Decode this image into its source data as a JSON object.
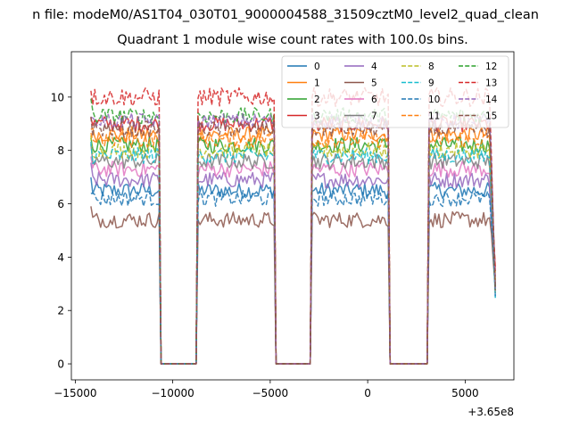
{
  "chart_data": {
    "type": "line",
    "suptitle": "n file: modeM0/AS1T04_030T01_9000004588_31509cztM0_level2_quad_clean",
    "title": "Quadrant 1 module wise count rates with 100.0s bins.",
    "xlabel": "",
    "ylabel": "",
    "x_offset_label": "+3.65e8",
    "xlim": [
      -15200,
      7500
    ],
    "ylim": [
      -0.6,
      11.7
    ],
    "xticks": [
      -15000,
      -10000,
      -5000,
      0,
      5000
    ],
    "xtick_labels": [
      "−15000",
      "−10000",
      "−5000",
      "0",
      "5000"
    ],
    "yticks": [
      0,
      2,
      4,
      6,
      8,
      10
    ],
    "ytick_labels": [
      "0",
      "2",
      "4",
      "6",
      "8",
      "10"
    ],
    "grid": false,
    "legend_position": "top-right",
    "legend_ncol": 4,
    "segments_x": [
      [
        -14200,
        -10700
      ],
      [
        -8700,
        -4800
      ],
      [
        -2850,
        1050
      ],
      [
        3150,
        6550
      ]
    ],
    "gap_x": [
      [
        -10600,
        -8800
      ],
      [
        -4700,
        -2950
      ],
      [
        1150,
        3050
      ]
    ],
    "gap_value": 0,
    "series": [
      {
        "name": "0",
        "color": "#1f77b4",
        "dash": "solid",
        "mean": 6.5,
        "noise": 0.3
      },
      {
        "name": "1",
        "color": "#ff7f0e",
        "dash": "solid",
        "mean": 8.6,
        "noise": 0.3
      },
      {
        "name": "2",
        "color": "#2ca02c",
        "dash": "solid",
        "mean": 8.2,
        "noise": 0.3
      },
      {
        "name": "3",
        "color": "#d62728",
        "dash": "solid",
        "mean": 9.0,
        "noise": 0.3
      },
      {
        "name": "4",
        "color": "#9467bd",
        "dash": "solid",
        "mean": 6.9,
        "noise": 0.3
      },
      {
        "name": "5",
        "color": "#8c564b",
        "dash": "solid",
        "mean": 5.4,
        "noise": 0.3
      },
      {
        "name": "6",
        "color": "#e377c2",
        "dash": "solid",
        "mean": 7.3,
        "noise": 0.3
      },
      {
        "name": "7",
        "color": "#7f7f7f",
        "dash": "solid",
        "mean": 7.6,
        "noise": 0.3
      },
      {
        "name": "8",
        "color": "#bcbd22",
        "dash": "dashed",
        "mean": 8.0,
        "noise": 0.3
      },
      {
        "name": "9",
        "color": "#17becf",
        "dash": "dashed",
        "mean": 7.8,
        "noise": 0.3
      },
      {
        "name": "10",
        "color": "#1f77b4",
        "dash": "dashed",
        "mean": 6.2,
        "noise": 0.3
      },
      {
        "name": "11",
        "color": "#ff7f0e",
        "dash": "dashed",
        "mean": 8.4,
        "noise": 0.3
      },
      {
        "name": "12",
        "color": "#2ca02c",
        "dash": "dashed",
        "mean": 9.3,
        "noise": 0.3
      },
      {
        "name": "13",
        "color": "#d62728",
        "dash": "dashed",
        "mean": 10.0,
        "noise": 0.35
      },
      {
        "name": "14",
        "color": "#9467bd",
        "dash": "dashed",
        "mean": 9.1,
        "noise": 0.3
      },
      {
        "name": "15",
        "color": "#8c564b",
        "dash": "dashed",
        "mean": 8.8,
        "noise": 0.3
      }
    ],
    "tail_end_value": 3.0,
    "series_alpha": 0.85
  }
}
